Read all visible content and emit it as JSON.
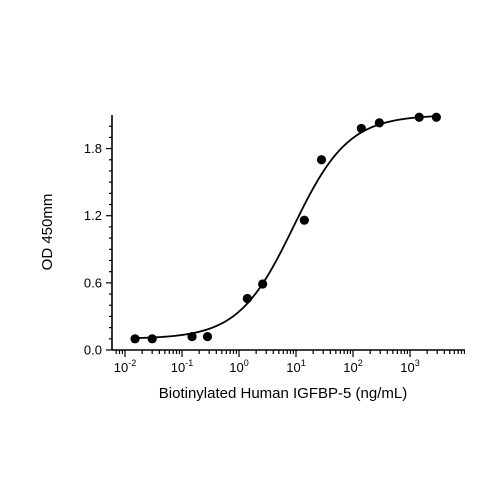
{
  "chart_data": {
    "type": "scatter",
    "title": "",
    "xlabel": "Biotinylated Human IGFBP-5 (ng/mL)",
    "ylabel": "OD 450mm",
    "x_scale": "log",
    "xlim": [
      0.01,
      5000
    ],
    "ylim": [
      0,
      2.1
    ],
    "x_tick_exponents": [
      "-2",
      "-1",
      "0",
      "1",
      "2",
      "3"
    ],
    "y_ticks": [
      "0.0",
      "0.6",
      "1.2",
      "1.8"
    ],
    "grid": false,
    "series": [
      {
        "type": "scatter",
        "x": [
          0.015,
          0.03,
          0.15,
          0.28,
          1.4,
          2.6,
          14,
          28,
          140,
          290,
          1450,
          2900
        ],
        "y": [
          0.1,
          0.1,
          0.12,
          0.12,
          0.46,
          0.59,
          1.16,
          1.7,
          1.98,
          2.03,
          2.08,
          2.08
        ]
      },
      {
        "type": "line",
        "fit": "4PL",
        "bottom": 0.1,
        "top": 2.1,
        "ec50": 9.0,
        "hill": 0.9
      }
    ]
  }
}
